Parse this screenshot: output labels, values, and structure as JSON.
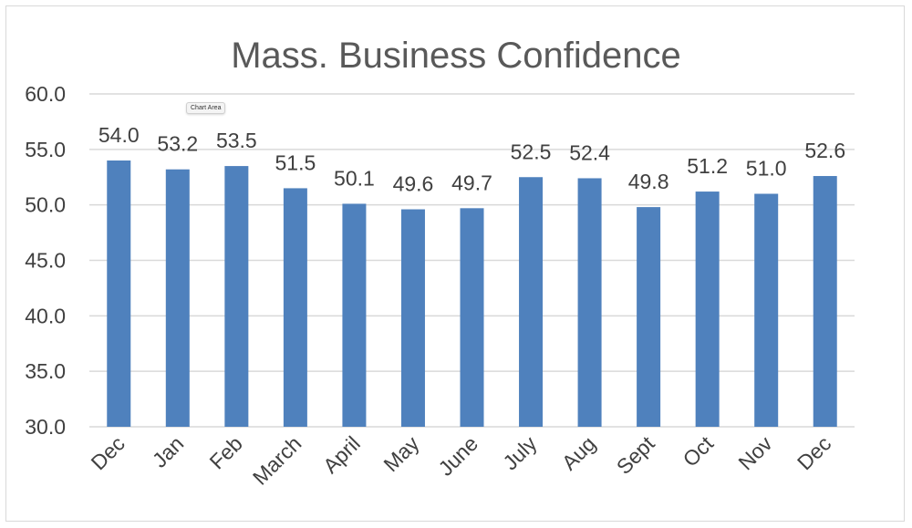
{
  "colors": {
    "bar": "#4f81bd",
    "grid": "#d9d9d9",
    "text": "#404040",
    "title": "#595959"
  },
  "tooltip": "Chart Area",
  "chart_data": {
    "type": "bar",
    "title": "Mass. Business Confidence",
    "xlabel": "",
    "ylabel": "",
    "ylim": [
      30,
      60
    ],
    "yticks": [
      "30.0",
      "35.0",
      "40.0",
      "45.0",
      "50.0",
      "55.0",
      "60.0"
    ],
    "grid": true,
    "legend": "none",
    "categories": [
      "Dec",
      "Jan",
      "Feb",
      "March",
      "April",
      "May",
      "June",
      "July",
      "Aug",
      "Sept",
      "Oct",
      "Nov",
      "Dec"
    ],
    "values": [
      54.0,
      53.2,
      53.5,
      51.5,
      50.1,
      49.6,
      49.7,
      52.5,
      52.4,
      49.8,
      51.2,
      51.0,
      52.6
    ],
    "data_labels": [
      "54.0",
      "53.2",
      "53.5",
      "51.5",
      "50.1",
      "49.6",
      "49.7",
      "52.5",
      "52.4",
      "49.8",
      "51.2",
      "51.0",
      "52.6"
    ]
  }
}
